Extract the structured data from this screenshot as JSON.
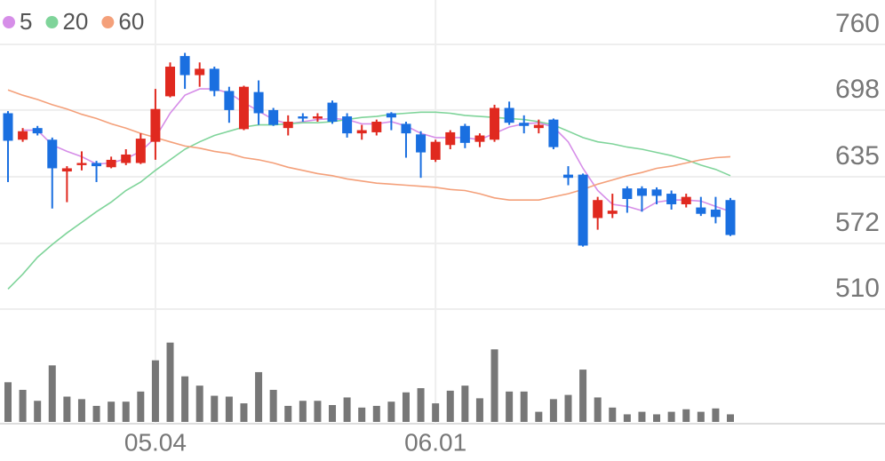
{
  "chart_data": {
    "type": "candlestick",
    "categories": [
      null,
      null,
      null,
      null,
      null,
      null,
      null,
      null,
      null,
      null,
      "05.04",
      null,
      null,
      null,
      null,
      null,
      null,
      null,
      null,
      null,
      null,
      null,
      null,
      null,
      null,
      null,
      null,
      null,
      null,
      "06.01",
      null,
      null,
      null,
      null,
      null,
      null,
      null,
      null,
      null,
      null,
      null,
      null,
      null,
      null,
      null,
      null,
      null,
      null,
      null,
      null
    ],
    "open": [
      695,
      670,
      681,
      670,
      640,
      646,
      648,
      644,
      648,
      648,
      668,
      711,
      749,
      731,
      737,
      716,
      680,
      715,
      698,
      681,
      692,
      690,
      705,
      692,
      676,
      677,
      695,
      685,
      675,
      651,
      665,
      683,
      668,
      670,
      700,
      686,
      681,
      689,
      637,
      637,
      596,
      600,
      624,
      624,
      623,
      619,
      609,
      606,
      604,
      613
    ],
    "high": [
      697,
      681,
      683,
      672,
      645,
      659,
      650,
      654,
      661,
      676,
      718,
      743,
      752,
      743,
      739,
      720,
      721,
      726,
      700,
      693,
      695,
      695,
      707,
      695,
      684,
      689,
      696,
      687,
      678,
      670,
      679,
      685,
      676,
      703,
      706,
      693,
      689,
      690,
      645,
      638,
      616,
      619,
      626,
      626,
      625,
      622,
      619,
      616,
      616,
      615
    ],
    "low": [
      630,
      668,
      674,
      605,
      611,
      641,
      630,
      643,
      646,
      647,
      651,
      710,
      718,
      720,
      711,
      686,
      679,
      684,
      683,
      674,
      687,
      687,
      685,
      672,
      670,
      674,
      679,
      653,
      634,
      649,
      661,
      662,
      663,
      668,
      684,
      676,
      676,
      661,
      627,
      569,
      585,
      596,
      601,
      602,
      609,
      604,
      606,
      598,
      591,
      579
    ],
    "close": [
      669,
      678,
      676,
      643,
      643,
      648,
      645,
      651,
      656,
      671,
      699,
      739,
      731,
      737,
      716,
      698,
      720,
      695,
      684,
      687,
      690,
      692,
      687,
      676,
      679,
      687,
      691,
      676,
      658,
      668,
      677,
      667,
      674,
      700,
      686,
      683,
      684,
      663,
      634,
      570,
      613,
      603,
      614,
      617,
      617,
      609,
      616,
      600,
      597,
      580
    ],
    "up_color": "#e0291f",
    "down_color": "#1a6fe0",
    "series": [
      {
        "name": "5",
        "color": "#d68ee8",
        "values": [
          null,
          679,
          679,
          665,
          659,
          654,
          647,
          648,
          652,
          659,
          672,
          695,
          712,
          718,
          718,
          714,
          705,
          697,
          689,
          685,
          687,
          689,
          690,
          689,
          685,
          685,
          687,
          683,
          676,
          672,
          672,
          672,
          670,
          676,
          682,
          685,
          686,
          682,
          668,
          643,
          622,
          609,
          607,
          603,
          611,
          613,
          613,
          612,
          607,
          602
        ]
      },
      {
        "name": "20",
        "color": "#7fd49a",
        "values": [
          529,
          543,
          559,
          571,
          582,
          592,
          602,
          611,
          622,
          630,
          641,
          651,
          661,
          668,
          674,
          678,
          682,
          684,
          684,
          685,
          686,
          686,
          687,
          689,
          691,
          692,
          694,
          695,
          696,
          696,
          695,
          693,
          692,
          691,
          690,
          689,
          687,
          684,
          678,
          672,
          668,
          666,
          663,
          661,
          658,
          655,
          651,
          646,
          642,
          636
        ]
      },
      {
        "name": "60",
        "color": "#f4a07a",
        "values": [
          717,
          712,
          708,
          703,
          699,
          694,
          690,
          685,
          681,
          676,
          672,
          668,
          664,
          662,
          659,
          657,
          653,
          651,
          648,
          644,
          641,
          638,
          636,
          633,
          631,
          629,
          628,
          627,
          626,
          625,
          623,
          622,
          619,
          615,
          613,
          613,
          613,
          616,
          619,
          623,
          628,
          632,
          636,
          639,
          643,
          645,
          648,
          651,
          653,
          654
        ]
      }
    ],
    "volume": [
      47,
      38,
      25,
      67,
      30,
      27,
      19,
      24,
      24,
      36,
      73,
      94,
      54,
      43,
      31,
      30,
      22,
      59,
      38,
      19,
      25,
      25,
      20,
      29,
      17,
      19,
      24,
      35,
      40,
      22,
      37,
      43,
      28,
      86,
      36,
      36,
      12,
      27,
      32,
      62,
      29,
      17,
      9,
      12,
      9,
      12,
      15,
      12,
      16,
      9
    ],
    "volume_color": "#777777",
    "volume_ylim": [
      0,
      100
    ],
    "ylim": [
      510,
      760
    ],
    "yticks": [
      510,
      572,
      635,
      698,
      760
    ],
    "grid": true,
    "legend": "top-left"
  }
}
